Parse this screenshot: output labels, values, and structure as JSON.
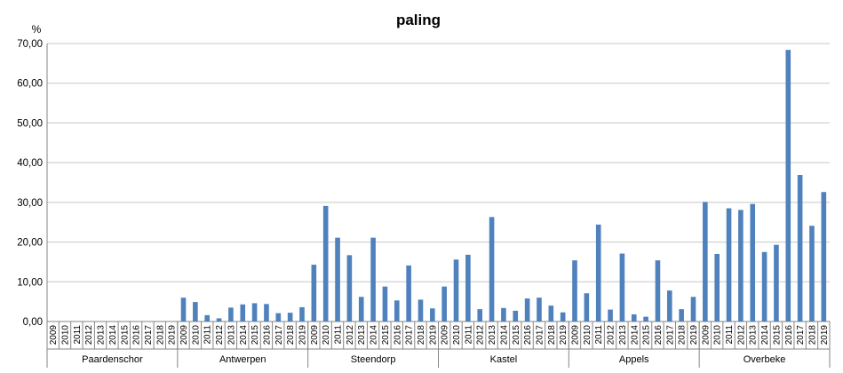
{
  "chart_data": {
    "type": "bar",
    "title": "paling",
    "ylabel": "%",
    "ylim": [
      0,
      70
    ],
    "ytick_labels": [
      "0,00",
      "10,00",
      "20,00",
      "30,00",
      "40,00",
      "50,00",
      "60,00",
      "70,00"
    ],
    "grid": true,
    "bar_color": "#4f81bd",
    "years": [
      "2009",
      "2010",
      "2011",
      "2012",
      "2013",
      "2014",
      "2015",
      "2016",
      "2017",
      "2018",
      "2019"
    ],
    "groups": [
      {
        "name": "Paardenschor",
        "values": [
          0,
          0,
          0,
          0,
          0,
          0,
          0,
          0,
          0,
          0,
          0
        ]
      },
      {
        "name": "Antwerpen",
        "values": [
          6.0,
          4.9,
          1.6,
          0.8,
          3.5,
          4.3,
          4.6,
          4.4,
          2.1,
          2.2,
          3.6
        ]
      },
      {
        "name": "Steendorp",
        "values": [
          14.3,
          29.1,
          21.1,
          16.7,
          6.2,
          21.1,
          8.8,
          5.3,
          14.1,
          5.5,
          3.3
        ]
      },
      {
        "name": "Kastel",
        "values": [
          8.8,
          15.6,
          16.8,
          3.1,
          26.3,
          3.4,
          2.7,
          5.8,
          6.0,
          4.0,
          2.3
        ]
      },
      {
        "name": "Appels",
        "values": [
          15.4,
          7.1,
          24.4,
          3.0,
          17.1,
          1.8,
          1.2,
          15.4,
          7.8,
          3.1,
          6.2
        ]
      },
      {
        "name": "Overbeke",
        "values": [
          30.1,
          17.0,
          28.5,
          28.1,
          29.6,
          17.5,
          19.3,
          68.4,
          36.9,
          24.1,
          32.6
        ]
      }
    ]
  }
}
